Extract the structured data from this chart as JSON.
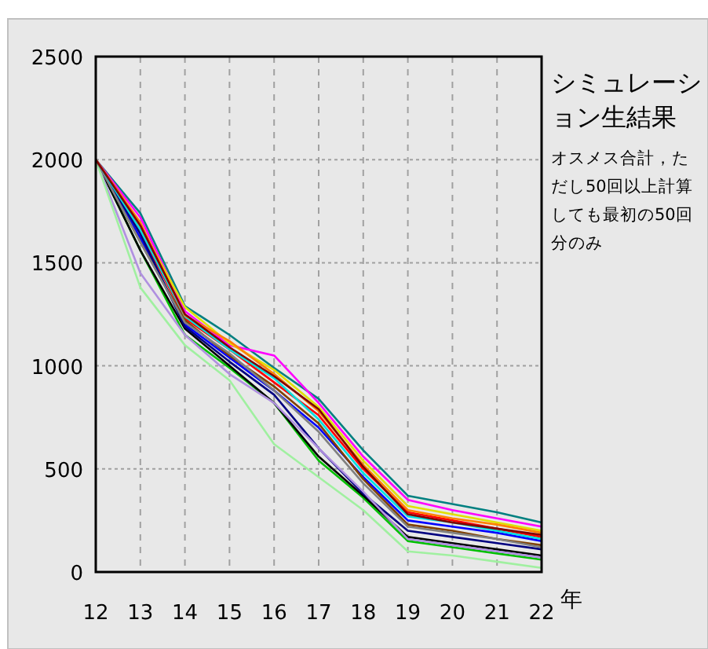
{
  "chart_data": {
    "type": "line",
    "title": "シミュレーション生結果",
    "subtitle": "オスメス合計，ただし50回以上計算しても最初の50回分のみ",
    "xlabel": "年",
    "x": [
      12,
      13,
      14,
      15,
      16,
      17,
      18,
      19,
      20,
      21,
      22
    ],
    "xlim": [
      12,
      22
    ],
    "xticks": [
      12,
      13,
      14,
      15,
      16,
      17,
      18,
      19,
      20,
      21,
      22
    ],
    "ylim": [
      0,
      2500
    ],
    "yticks": [
      0,
      500,
      1000,
      1500,
      2000,
      2500
    ],
    "grid": true,
    "marker": "none",
    "line_style": "solid",
    "series": [
      {
        "color": "#008080",
        "values": [
          2000,
          1740,
          1290,
          1150,
          990,
          840,
          590,
          370,
          330,
          290,
          240
        ]
      },
      {
        "color": "#ff00ff",
        "values": [
          2000,
          1720,
          1265,
          1100,
          1050,
          820,
          560,
          350,
          300,
          260,
          220
        ]
      },
      {
        "color": "#e0e000",
        "values": [
          2000,
          1680,
          1285,
          1110,
          980,
          800,
          540,
          320,
          280,
          240,
          200
        ]
      },
      {
        "color": "#ff0000",
        "values": [
          2000,
          1650,
          1230,
          1080,
          920,
          760,
          500,
          290,
          250,
          210,
          170
        ]
      },
      {
        "color": "#0000ff",
        "values": [
          2000,
          1620,
          1200,
          1040,
          880,
          700,
          460,
          250,
          220,
          190,
          150
        ]
      },
      {
        "color": "#804000",
        "values": [
          2000,
          1600,
          1220,
          1050,
          900,
          720,
          450,
          230,
          200,
          160,
          130
        ]
      },
      {
        "color": "#00c000",
        "values": [
          2000,
          1560,
          1150,
          990,
          820,
          540,
          360,
          150,
          120,
          90,
          60
        ]
      },
      {
        "color": "#000000",
        "values": [
          2000,
          1560,
          1180,
          1000,
          820,
          560,
          370,
          170,
          140,
          110,
          80
        ]
      },
      {
        "color": "#000080",
        "values": [
          2000,
          1640,
          1190,
          1020,
          860,
          600,
          380,
          200,
          170,
          140,
          110
        ]
      },
      {
        "color": "#b090e0",
        "values": [
          2000,
          1450,
          1150,
          960,
          820,
          600,
          390,
          160,
          130,
          100,
          70
        ]
      },
      {
        "color": "#a0f0a0",
        "values": [
          2000,
          1380,
          1100,
          930,
          620,
          460,
          300,
          100,
          80,
          50,
          20
        ]
      },
      {
        "color": "#808080",
        "values": [
          2000,
          1600,
          1210,
          1060,
          880,
          680,
          430,
          220,
          190,
          160,
          120
        ]
      },
      {
        "color": "#00e0e0",
        "values": [
          2000,
          1660,
          1240,
          1080,
          940,
          740,
          480,
          270,
          240,
          200,
          160
        ]
      },
      {
        "color": "#ff8000",
        "values": [
          2000,
          1695,
          1245,
          1120,
          960,
          780,
          520,
          300,
          260,
          230,
          190
        ]
      },
      {
        "color": "#800000",
        "values": [
          2000,
          1680,
          1250,
          1090,
          950,
          790,
          510,
          280,
          240,
          210,
          180
        ]
      }
    ]
  }
}
